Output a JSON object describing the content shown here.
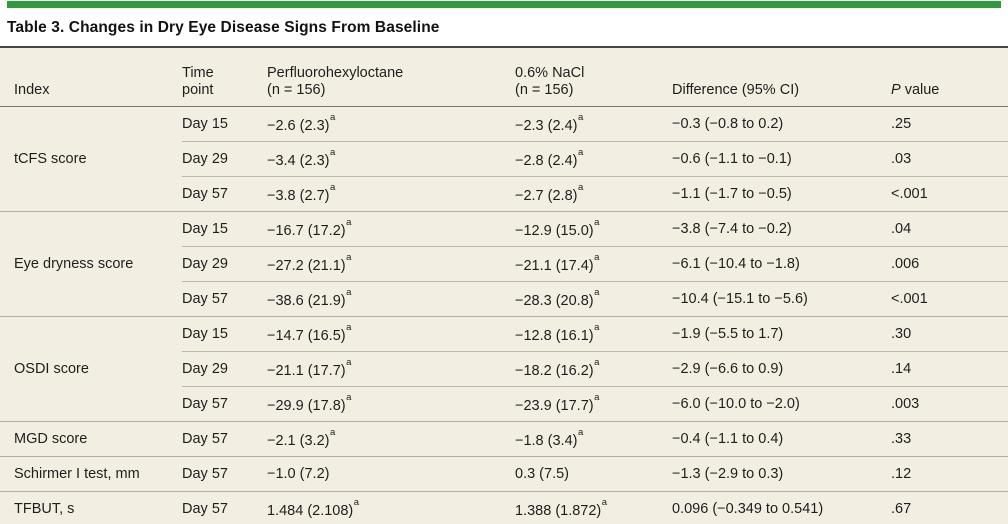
{
  "title": "Table 3. Changes in Dry Eye Disease Signs From Baseline",
  "accent_color": "#2e9b3c",
  "table_background": "#f2efe2",
  "columns": [
    {
      "line1": "Index",
      "line2": ""
    },
    {
      "line1": "Time",
      "line2": "point"
    },
    {
      "line1": "Perfluorohexyloctane",
      "line2": "(n = 156)"
    },
    {
      "line1": "0.6% NaCl",
      "line2": "(n = 156)"
    },
    {
      "line1": "Difference (95% CI)",
      "line2": ""
    },
    {
      "italic": "P",
      "rest": " value"
    }
  ],
  "groups": [
    {
      "index": "tCFS score",
      "rows": [
        {
          "time": "Day 15",
          "pfho": "−2.6 (2.3)",
          "pfho_sup": "a",
          "nacl": "−2.3 (2.4)",
          "nacl_sup": "a",
          "diff": "−0.3 (−0.8 to 0.2)",
          "p": ".25"
        },
        {
          "time": "Day 29",
          "pfho": "−3.4 (2.3)",
          "pfho_sup": "a",
          "nacl": "−2.8 (2.4)",
          "nacl_sup": "a",
          "diff": "−0.6 (−1.1 to −0.1)",
          "p": ".03"
        },
        {
          "time": "Day 57",
          "pfho": "−3.8 (2.7)",
          "pfho_sup": "a",
          "nacl": "−2.7 (2.8)",
          "nacl_sup": "a",
          "diff": "−1.1 (−1.7 to −0.5)",
          "p": "<.001"
        }
      ]
    },
    {
      "index": "Eye dryness score",
      "rows": [
        {
          "time": "Day 15",
          "pfho": "−16.7 (17.2)",
          "pfho_sup": "a",
          "nacl": "−12.9 (15.0)",
          "nacl_sup": "a",
          "diff": "−3.8 (−7.4 to −0.2)",
          "p": ".04"
        },
        {
          "time": "Day 29",
          "pfho": "−27.2 (21.1)",
          "pfho_sup": "a",
          "nacl": "−21.1 (17.4)",
          "nacl_sup": "a",
          "diff": "−6.1 (−10.4 to −1.8)",
          "p": ".006"
        },
        {
          "time": "Day 57",
          "pfho": "−38.6 (21.9)",
          "pfho_sup": "a",
          "nacl": "−28.3 (20.8)",
          "nacl_sup": "a",
          "diff": "−10.4 (−15.1 to −5.6)",
          "p": "<.001"
        }
      ]
    },
    {
      "index": "OSDI score",
      "rows": [
        {
          "time": "Day 15",
          "pfho": "−14.7 (16.5)",
          "pfho_sup": "a",
          "nacl": "−12.8 (16.1)",
          "nacl_sup": "a",
          "diff": "−1.9 (−5.5 to 1.7)",
          "p": ".30"
        },
        {
          "time": "Day 29",
          "pfho": "−21.1 (17.7)",
          "pfho_sup": "a",
          "nacl": "−18.2 (16.2)",
          "nacl_sup": "a",
          "diff": "−2.9 (−6.6 to 0.9)",
          "p": ".14"
        },
        {
          "time": "Day 57",
          "pfho": "−29.9 (17.8)",
          "pfho_sup": "a",
          "nacl": "−23.9 (17.7)",
          "nacl_sup": "a",
          "diff": "−6.0 (−10.0 to −2.0)",
          "p": ".003"
        }
      ]
    },
    {
      "index": "MGD score",
      "rows": [
        {
          "time": "Day 57",
          "pfho": "−2.1 (3.2)",
          "pfho_sup": "a",
          "nacl": "−1.8 (3.4)",
          "nacl_sup": "a",
          "diff": "−0.4 (−1.1 to 0.4)",
          "p": ".33"
        }
      ]
    },
    {
      "index": "Schirmer I test, mm",
      "rows": [
        {
          "time": "Day 57",
          "pfho": "−1.0 (7.2)",
          "pfho_sup": "",
          "nacl": "0.3 (7.5)",
          "nacl_sup": "",
          "diff": "−1.3 (−2.9 to 0.3)",
          "p": ".12"
        }
      ]
    },
    {
      "index": "TFBUT, s",
      "rows": [
        {
          "time": "Day 57",
          "pfho": "1.484 (2.108)",
          "pfho_sup": "a",
          "nacl": "1.388 (1.872)",
          "nacl_sup": "a",
          "diff": "0.096 (−0.349 to 0.541)",
          "p": ".67"
        }
      ]
    }
  ]
}
